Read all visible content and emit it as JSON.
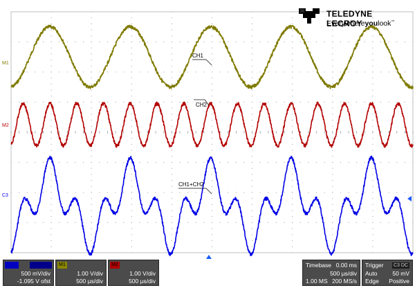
{
  "brand": {
    "name": "TELEDYNE LECROY",
    "tagline_prefix": "Everywhere",
    "tagline_bold": "you",
    "tagline_suffix": "look",
    "tm": "™"
  },
  "colors": {
    "ch1": "#7f7a00",
    "ch2": "#b30000",
    "sum": "#0000e6",
    "c1_badge": "#0000c0",
    "m1_badge": "#8a8600",
    "m2_badge": "#b00000",
    "panel": "#4b4b4b"
  },
  "markers": {
    "m1": "M1",
    "m2": "M2",
    "c3": "C3"
  },
  "annotations": [
    "CH1",
    "CH2",
    "CH1+CH2"
  ],
  "channels": [
    {
      "id": "C1",
      "scale": "500 mV/div",
      "offset": "-1.095 V ofst"
    },
    {
      "id": "M1",
      "scale": "1.00 V/div",
      "time": "500 µs/div"
    },
    {
      "id": "M2",
      "scale": "1.00 V/div",
      "time": "500 µs/div"
    }
  ],
  "timebase": {
    "label": "Timebase",
    "value": "0.00 ms",
    "time_div": "500 µs/div",
    "samples": "1.00 MS",
    "rate": "200 MS/s"
  },
  "trigger": {
    "label": "Trigger",
    "tag": "C3 DC",
    "mode": "Auto",
    "level": "50 mV",
    "type": "Edge",
    "slope": "Positive"
  },
  "chart_data": {
    "type": "line",
    "grid": true,
    "divisions": {
      "x": 10,
      "y": 8
    },
    "series": [
      {
        "name": "CH1",
        "cycles_on_screen": 5,
        "amplitude_div": 1.0
      },
      {
        "name": "CH2",
        "cycles_on_screen": 15,
        "amplitude_div": 0.7
      },
      {
        "name": "CH1+CH2",
        "cycles_on_screen": 5,
        "amplitude_div": 1.6
      }
    ]
  }
}
